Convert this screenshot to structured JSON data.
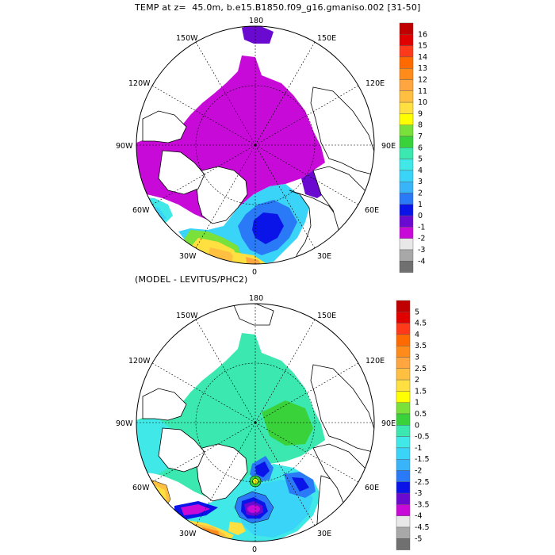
{
  "title_top": "TEMP at z=  45.0m, b.e15.B1850.f09_g16.gmaniso.002 [31-50]",
  "title_bottom": "(MODEL - LEVITUS/PHC2)",
  "longitude_labels": {
    "lon_180": "180",
    "lon_150w": "150W",
    "lon_150e": "150E",
    "lon_120w": "120W",
    "lon_120e": "120E",
    "lon_90w": "90W",
    "lon_90e": "90E",
    "lon_60w": "60W",
    "lon_60e": "60E",
    "lon_30w": "30W",
    "lon_30e": "30E",
    "lon_0": "0"
  },
  "colorbar_top": {
    "labels": [
      "16",
      "15",
      "14",
      "13",
      "12",
      "11",
      "10",
      "9",
      "8",
      "7",
      "6",
      "5",
      "4",
      "3",
      "2",
      "1",
      "0",
      "-1",
      "-2",
      "-3",
      "-4"
    ],
    "colors": [
      "#c00000",
      "#e00000",
      "#ff3a1a",
      "#ff6a00",
      "#ff8c1a",
      "#ffa640",
      "#ffbf40",
      "#ffe040",
      "#ffff00",
      "#7ae03a",
      "#3ad23a",
      "#3ae8b0",
      "#40e8e8",
      "#3ad4f8",
      "#3ab4f8",
      "#2a7af8",
      "#0a14e8",
      "#6a0ad0",
      "#c80ad8",
      "#e8e8e8",
      "#a8a8a8",
      "#707070"
    ]
  },
  "colorbar_bottom": {
    "labels": [
      "5",
      "4.5",
      "4",
      "3.5",
      "3",
      "2.5",
      "2",
      "1.5",
      "1",
      "0.5",
      "0",
      "-0.5",
      "-1",
      "-1.5",
      "-2",
      "-2.5",
      "-3",
      "-3.5",
      "-4",
      "-4.5",
      "-5"
    ],
    "colors": [
      "#c00000",
      "#e00000",
      "#ff3a1a",
      "#ff6a00",
      "#ff8c1a",
      "#ffa640",
      "#ffbf40",
      "#ffe040",
      "#ffff00",
      "#7ae03a",
      "#3ad23a",
      "#3ae8b0",
      "#40e8e8",
      "#3ad4f8",
      "#3ab4f8",
      "#2a7af8",
      "#0a14e8",
      "#6a0ad0",
      "#c80ad8",
      "#e8e8e8",
      "#a8a8a8",
      "#707070"
    ]
  }
}
